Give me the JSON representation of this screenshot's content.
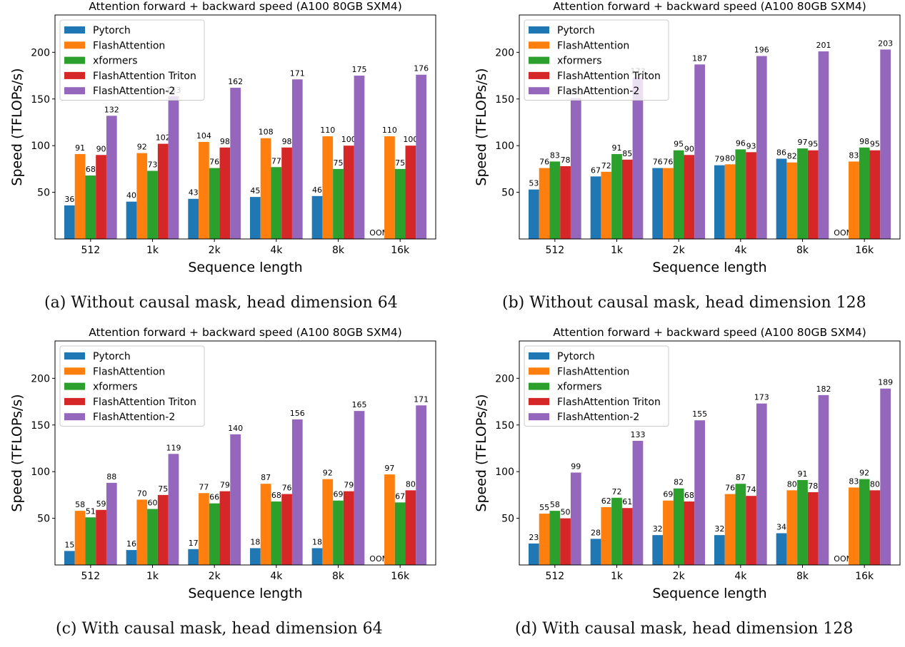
{
  "chart_data": [
    {
      "type": "bar",
      "title": "Attention forward + backward speed (A100 80GB SXM4)",
      "caption": "(a) Without causal mask, head dimension 64",
      "xlabel": "Sequence length",
      "ylabel": "Speed (TFLOPs/s)",
      "ylim": [
        0,
        240
      ],
      "yticks": [
        50,
        100,
        150,
        200
      ],
      "categories": [
        "512",
        "1k",
        "2k",
        "4k",
        "8k",
        "16k"
      ],
      "legend_position": "top-left",
      "grid": false,
      "series": [
        {
          "name": "Pytorch",
          "color": "#1f77b4",
          "values": [
            36,
            40,
            43,
            45,
            46,
            null
          ]
        },
        {
          "name": "FlashAttention",
          "color": "#ff7f0e",
          "values": [
            91,
            92,
            104,
            108,
            110,
            110
          ]
        },
        {
          "name": "xformers",
          "color": "#2ca02c",
          "values": [
            68,
            73,
            76,
            77,
            75,
            75
          ]
        },
        {
          "name": "FlashAttention Triton",
          "color": "#d62728",
          "values": [
            90,
            102,
            98,
            98,
            100,
            100
          ]
        },
        {
          "name": "FlashAttention-2",
          "color": "#9467bd",
          "values": [
            132,
            153,
            162,
            171,
            175,
            176
          ]
        }
      ],
      "annotations": [
        {
          "text": "OOM",
          "series": "Pytorch",
          "category": "16k"
        }
      ]
    },
    {
      "type": "bar",
      "title": "Attention forward + backward speed (A100 80GB SXM4)",
      "caption": "(b) Without causal mask, head dimension 128",
      "xlabel": "Sequence length",
      "ylabel": "Speed (TFLOPs/s)",
      "ylim": [
        0,
        240
      ],
      "yticks": [
        50,
        100,
        150,
        200
      ],
      "categories": [
        "512",
        "1k",
        "2k",
        "4k",
        "8k",
        "16k"
      ],
      "legend_position": "top-left",
      "grid": false,
      "series": [
        {
          "name": "Pytorch",
          "color": "#1f77b4",
          "values": [
            53,
            67,
            76,
            79,
            86,
            null
          ]
        },
        {
          "name": "FlashAttention",
          "color": "#ff7f0e",
          "values": [
            76,
            72,
            76,
            80,
            82,
            83
          ]
        },
        {
          "name": "xformers",
          "color": "#2ca02c",
          "values": [
            83,
            91,
            95,
            96,
            97,
            98
          ]
        },
        {
          "name": "FlashAttention Triton",
          "color": "#d62728",
          "values": [
            78,
            85,
            90,
            93,
            95,
            95
          ]
        },
        {
          "name": "FlashAttention-2",
          "color": "#9467bd",
          "values": [
            151,
            173,
            187,
            196,
            201,
            203
          ]
        }
      ],
      "annotations": [
        {
          "text": "OOM",
          "series": "Pytorch",
          "category": "16k"
        }
      ]
    },
    {
      "type": "bar",
      "title": "Attention forward + backward speed (A100 80GB SXM4)",
      "caption": "(c) With causal mask, head dimension 64",
      "xlabel": "Sequence length",
      "ylabel": "Speed (TFLOPs/s)",
      "ylim": [
        0,
        240
      ],
      "yticks": [
        50,
        100,
        150,
        200
      ],
      "categories": [
        "512",
        "1k",
        "2k",
        "4k",
        "8k",
        "16k"
      ],
      "legend_position": "top-left",
      "grid": false,
      "series": [
        {
          "name": "Pytorch",
          "color": "#1f77b4",
          "values": [
            15,
            16,
            17,
            18,
            18,
            null
          ]
        },
        {
          "name": "FlashAttention",
          "color": "#ff7f0e",
          "values": [
            58,
            70,
            77,
            87,
            92,
            97
          ]
        },
        {
          "name": "xformers",
          "color": "#2ca02c",
          "values": [
            51,
            60,
            66,
            68,
            69,
            67
          ]
        },
        {
          "name": "FlashAttention Triton",
          "color": "#d62728",
          "values": [
            59,
            75,
            79,
            76,
            79,
            80
          ]
        },
        {
          "name": "FlashAttention-2",
          "color": "#9467bd",
          "values": [
            88,
            119,
            140,
            156,
            165,
            171
          ]
        }
      ],
      "annotations": [
        {
          "text": "OOM",
          "series": "Pytorch",
          "category": "16k"
        }
      ]
    },
    {
      "type": "bar",
      "title": "Attention forward + backward speed (A100 80GB SXM4)",
      "caption": "(d) With causal mask, head dimension 128",
      "xlabel": "Sequence length",
      "ylabel": "Speed (TFLOPs/s)",
      "ylim": [
        0,
        240
      ],
      "yticks": [
        50,
        100,
        150,
        200
      ],
      "categories": [
        "512",
        "1k",
        "2k",
        "4k",
        "8k",
        "16k"
      ],
      "legend_position": "top-left",
      "grid": false,
      "series": [
        {
          "name": "Pytorch",
          "color": "#1f77b4",
          "values": [
            23,
            28,
            32,
            32,
            34,
            null
          ]
        },
        {
          "name": "FlashAttention",
          "color": "#ff7f0e",
          "values": [
            55,
            62,
            69,
            76,
            80,
            83
          ]
        },
        {
          "name": "xformers",
          "color": "#2ca02c",
          "values": [
            58,
            72,
            82,
            87,
            91,
            92
          ]
        },
        {
          "name": "FlashAttention Triton",
          "color": "#d62728",
          "values": [
            50,
            61,
            68,
            74,
            78,
            80
          ]
        },
        {
          "name": "FlashAttention-2",
          "color": "#9467bd",
          "values": [
            99,
            133,
            155,
            173,
            182,
            189
          ]
        }
      ],
      "annotations": [
        {
          "text": "OOM",
          "series": "Pytorch",
          "category": "16k"
        }
      ]
    }
  ]
}
